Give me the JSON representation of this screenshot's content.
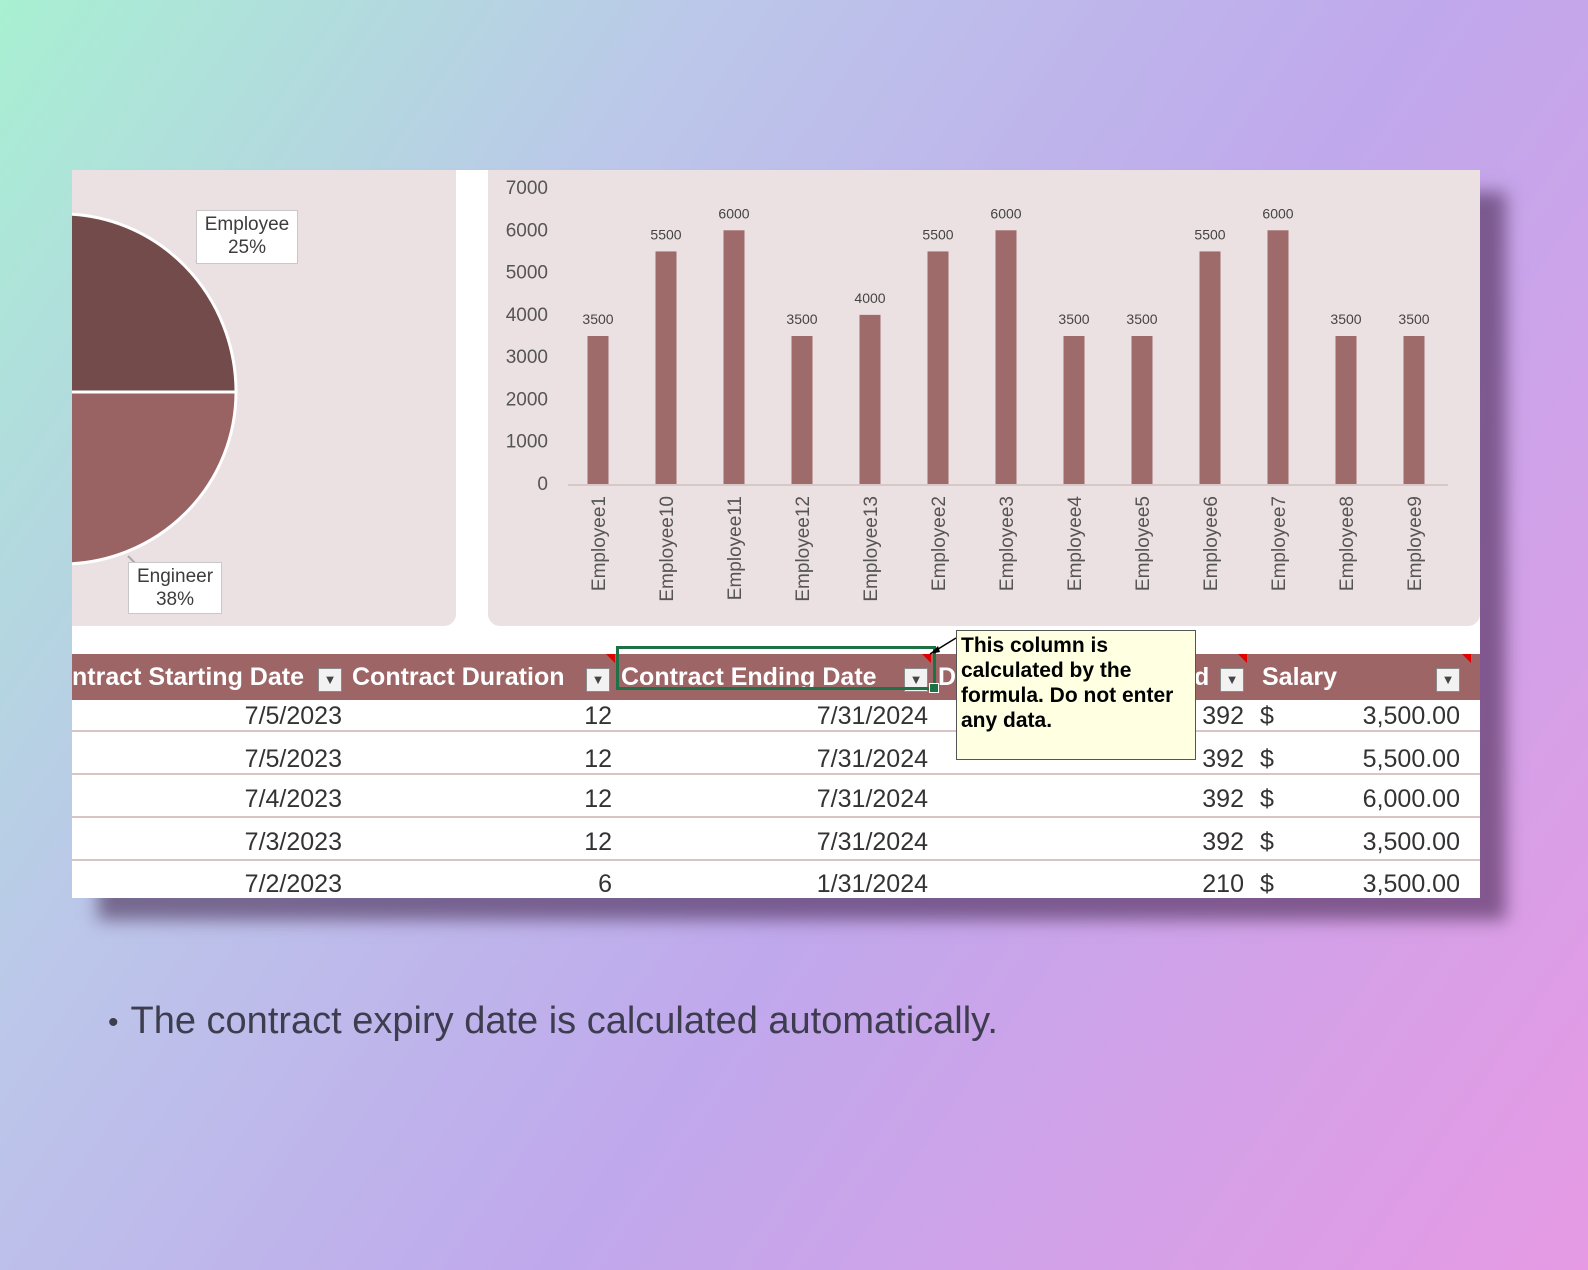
{
  "pie_chart": {
    "labels": [
      {
        "name": "Employee",
        "percent": "25%"
      },
      {
        "name": "Engineer",
        "percent": "38%"
      }
    ],
    "colors": {
      "slice_1": "#744b4b",
      "slice_2": "#9a6363",
      "panel": "#ece1e2"
    }
  },
  "chart_data": {
    "type": "bar",
    "categories": [
      "Employee1",
      "Employee10",
      "Employee11",
      "Employee12",
      "Employee13",
      "Employee2",
      "Employee3",
      "Employee4",
      "Employee5",
      "Employee6",
      "Employee7",
      "Employee8",
      "Employee9"
    ],
    "values": [
      3500,
      5500,
      6000,
      3500,
      4000,
      5500,
      6000,
      3500,
      3500,
      5500,
      6000,
      3500,
      3500
    ],
    "ylim": [
      0,
      7000
    ],
    "yticks": [
      0,
      1000,
      2000,
      3000,
      4000,
      5000,
      6000,
      7000
    ],
    "data_labels": true,
    "grid": false,
    "bar_color": "#9e6a6a"
  },
  "table": {
    "columns": [
      {
        "label": "ntract Starting Date",
        "filter_icon": "chevron-down-icon"
      },
      {
        "label": "Contract Duration",
        "filter_icon": "chevron-down-icon"
      },
      {
        "label": "Contract Ending Date",
        "filter_icon": "chevron-down-icon"
      },
      {
        "label": "D",
        "filter_icon": ""
      },
      {
        "label": "d",
        "filter_icon": "chevron-down-icon"
      },
      {
        "label": "Salary",
        "filter_icon": "chevron-down-icon"
      }
    ],
    "rows": [
      {
        "start": "7/5/2023",
        "duration": "12",
        "end": "7/31/2024",
        "days": "392",
        "currency": "$",
        "salary": "3,500.00"
      },
      {
        "start": "7/5/2023",
        "duration": "12",
        "end": "7/31/2024",
        "days": "392",
        "currency": "$",
        "salary": "5,500.00"
      },
      {
        "start": "7/4/2023",
        "duration": "12",
        "end": "7/31/2024",
        "days": "392",
        "currency": "$",
        "salary": "6,000.00"
      },
      {
        "start": "7/3/2023",
        "duration": "12",
        "end": "7/31/2024",
        "days": "392",
        "currency": "$",
        "salary": "3,500.00"
      },
      {
        "start": "7/2/2023",
        "duration": "6",
        "end": "1/31/2024",
        "days": "210",
        "currency": "$",
        "salary": "3,500.00"
      }
    ],
    "header_color": "#9d6565"
  },
  "comment": {
    "text": "This column is calculated by the formula. Do not enter any data."
  },
  "caption": {
    "text": "The contract expiry date is calculated automatically."
  }
}
